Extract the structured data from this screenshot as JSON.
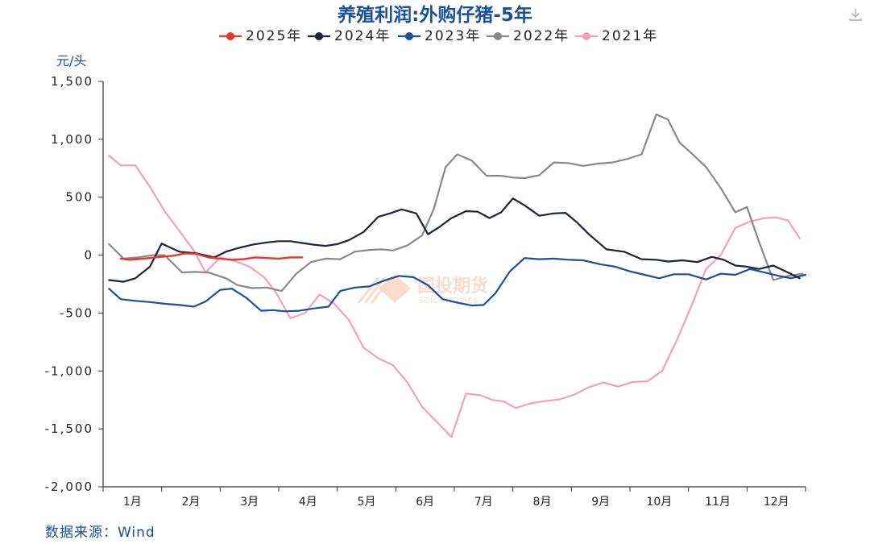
{
  "chart_data": {
    "type": "line",
    "title": "养殖利润:外购仔猪-5年",
    "ylabel": "元/头",
    "ylim": [
      -2000,
      1500
    ],
    "yticks": [
      1500,
      1000,
      500,
      0,
      -500,
      -1000,
      -1500,
      -2000
    ],
    "ytick_labels": [
      "1,500",
      "1,000",
      "500",
      "0",
      "-500",
      "-1,000",
      "-1,500",
      "-2,000"
    ],
    "categories": [
      "1月",
      "2月",
      "3月",
      "4月",
      "5月",
      "6月",
      "7月",
      "8月",
      "9月",
      "10月",
      "11月",
      "12月"
    ],
    "xlim": [
      0,
      12
    ],
    "legend_position": "top-center",
    "watermark": "国投期货 SDIC FUTURES",
    "series": [
      {
        "name": "2025年",
        "color": "#e8372a",
        "width": 2.4,
        "x": [
          0.3,
          0.45,
          0.6,
          0.8,
          1.0,
          1.2,
          1.4,
          1.6,
          1.8,
          2.0,
          2.2,
          2.4,
          2.6,
          2.8,
          3.0,
          3.2,
          3.4
        ],
        "y": [
          -30,
          -40,
          -35,
          -25,
          -15,
          -5,
          15,
          10,
          -20,
          -30,
          -40,
          -35,
          -20,
          -25,
          -30,
          -20,
          -20
        ]
      },
      {
        "name": "2024年",
        "color": "#1d2240",
        "width": 2.2,
        "x": [
          0.1,
          0.35,
          0.55,
          0.8,
          1.0,
          1.3,
          1.6,
          1.9,
          2.1,
          2.3,
          2.55,
          2.8,
          3.0,
          3.2,
          3.4,
          3.6,
          3.8,
          4.0,
          4.2,
          4.45,
          4.7,
          4.9,
          5.1,
          5.35,
          5.55,
          5.75,
          5.95,
          6.2,
          6.4,
          6.6,
          6.8,
          7.0,
          7.2,
          7.45,
          7.7,
          7.9,
          8.1,
          8.3,
          8.6,
          8.9,
          9.2,
          9.45,
          9.65,
          9.9,
          10.15,
          10.4,
          10.6,
          10.8,
          11.0,
          11.2,
          11.45,
          11.7,
          11.9
        ],
        "y": [
          -215,
          -230,
          -200,
          -100,
          100,
          30,
          15,
          -20,
          30,
          60,
          90,
          110,
          120,
          120,
          105,
          90,
          80,
          95,
          130,
          200,
          330,
          360,
          395,
          360,
          180,
          245,
          320,
          380,
          375,
          320,
          370,
          490,
          430,
          340,
          360,
          365,
          280,
          180,
          50,
          30,
          -35,
          -40,
          -55,
          -45,
          -60,
          -15,
          -40,
          -90,
          -100,
          -120,
          -90,
          -150,
          -200
        ]
      },
      {
        "name": "2023年",
        "color": "#1a4f9c",
        "width": 2.2,
        "x": [
          0.1,
          0.3,
          0.55,
          0.8,
          1.05,
          1.3,
          1.55,
          1.75,
          2.0,
          2.2,
          2.45,
          2.7,
          2.9,
          3.1,
          3.35,
          3.6,
          3.85,
          4.05,
          4.3,
          4.55,
          4.8,
          5.05,
          5.3,
          5.55,
          5.8,
          6.05,
          6.3,
          6.5,
          6.7,
          6.95,
          7.2,
          7.45,
          7.7,
          7.95,
          8.2,
          8.5,
          8.75,
          9.0,
          9.25,
          9.5,
          9.75,
          10.0,
          10.3,
          10.55,
          10.8,
          11.05,
          11.3,
          11.55,
          11.75,
          12.0
        ],
        "y": [
          -290,
          -380,
          -395,
          -405,
          -420,
          -430,
          -445,
          -400,
          -300,
          -290,
          -370,
          -480,
          -475,
          -485,
          -480,
          -460,
          -445,
          -310,
          -280,
          -270,
          -220,
          -180,
          -190,
          -260,
          -380,
          -410,
          -435,
          -430,
          -330,
          -140,
          -25,
          -35,
          -30,
          -40,
          -45,
          -80,
          -100,
          -140,
          -170,
          -200,
          -165,
          -165,
          -210,
          -160,
          -170,
          -120,
          -150,
          -180,
          -200,
          -170
        ]
      },
      {
        "name": "2022年",
        "color": "#888888",
        "width": 2.2,
        "x": [
          0.1,
          0.35,
          0.6,
          0.85,
          1.05,
          1.35,
          1.55,
          1.8,
          2.1,
          2.3,
          2.55,
          2.8,
          3.05,
          3.3,
          3.55,
          3.8,
          4.05,
          4.3,
          4.55,
          4.75,
          4.95,
          5.2,
          5.45,
          5.65,
          5.85,
          6.05,
          6.3,
          6.55,
          6.8,
          7.0,
          7.2,
          7.45,
          7.7,
          7.95,
          8.2,
          8.45,
          8.7,
          8.95,
          9.2,
          9.45,
          9.65,
          9.85,
          10.05,
          10.3,
          10.55,
          10.8,
          11.0,
          11.2,
          11.45,
          11.7,
          11.95
        ],
        "y": [
          95,
          -30,
          -20,
          0,
          0,
          -150,
          -145,
          -150,
          -200,
          -260,
          -285,
          -280,
          -310,
          -160,
          -60,
          -30,
          -35,
          30,
          45,
          50,
          40,
          85,
          170,
          400,
          760,
          870,
          815,
          685,
          685,
          670,
          665,
          690,
          800,
          795,
          770,
          790,
          800,
          830,
          870,
          1215,
          1170,
          970,
          880,
          760,
          580,
          370,
          415,
          120,
          -215,
          -180,
          -160
        ]
      },
      {
        "name": "2021年",
        "color": "#f4a0b5",
        "width": 2.2,
        "x": [
          0.1,
          0.3,
          0.55,
          0.8,
          1.05,
          1.3,
          1.55,
          1.75,
          2.0,
          2.25,
          2.5,
          2.75,
          2.95,
          3.2,
          3.45,
          3.7,
          3.95,
          4.2,
          4.45,
          4.7,
          4.95,
          5.2,
          5.45,
          5.7,
          5.95,
          6.2,
          6.45,
          6.65,
          6.85,
          7.05,
          7.3,
          7.55,
          7.8,
          8.05,
          8.3,
          8.55,
          8.8,
          9.05,
          9.3,
          9.55,
          9.8,
          10.05,
          10.3,
          10.55,
          10.8,
          11.05,
          11.3,
          11.5,
          11.7,
          11.9
        ],
        "y": [
          860,
          775,
          775,
          590,
          380,
          210,
          40,
          -150,
          -20,
          -50,
          -100,
          -190,
          -320,
          -545,
          -500,
          -340,
          -420,
          -560,
          -800,
          -890,
          -950,
          -1100,
          -1310,
          -1440,
          -1570,
          -1195,
          -1210,
          -1250,
          -1265,
          -1320,
          -1280,
          -1260,
          -1245,
          -1205,
          -1140,
          -1100,
          -1135,
          -1095,
          -1090,
          -1000,
          -735,
          -440,
          -120,
          0,
          235,
          290,
          320,
          325,
          300,
          145
        ]
      }
    ]
  },
  "source_label": "数据来源：Wind",
  "icons": {
    "download": "download-icon"
  }
}
